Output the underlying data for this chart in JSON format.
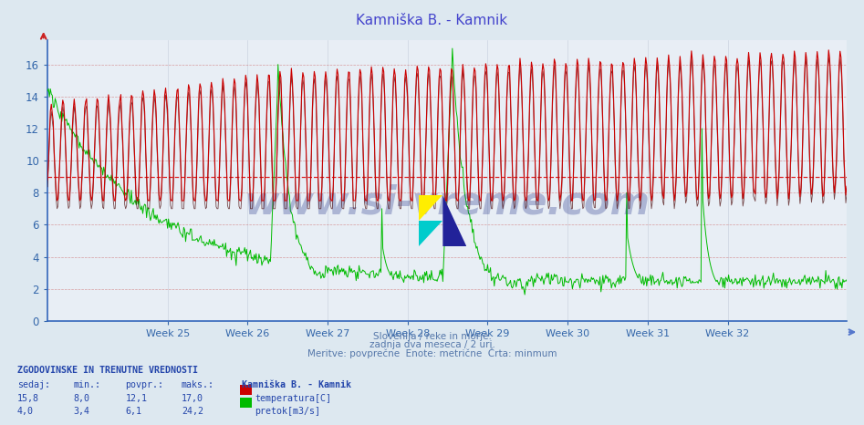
{
  "title": "Kamniška B. - Kamnik",
  "title_color": "#4444cc",
  "bg_color": "#dde8f0",
  "plot_bg_color": "#e8eef5",
  "grid_color": "#aab8cc",
  "grid_vcolor": "#c0c8d8",
  "x_label_color": "#3366aa",
  "y_label_color": "#3366aa",
  "week_labels": [
    "Week 25",
    "Week 26",
    "Week 27",
    "Week 28",
    "Week 29",
    "Week 30",
    "Week 31",
    "Week 32"
  ],
  "y_ticks": [
    0,
    2,
    4,
    6,
    8,
    10,
    12,
    14,
    16
  ],
  "y_min": 0,
  "y_max": 17.5,
  "n_points": 840,
  "temp_color": "#cc0000",
  "temp_min_color": "#440000",
  "flow_color": "#00bb00",
  "avg_line_color": "#dd0000",
  "avg_line_value": 9.0,
  "subtitle1": "Slovenija / reke in morje.",
  "subtitle2": "zadnja dva meseca / 2 uri.",
  "subtitle3": "Meritve: povprečne  Enote: metrične  Črta: minmum",
  "legend_title": "ZGODOVINSKE IN TRENUTNE VREDNOSTI",
  "col_sedaj": "sedaj:",
  "col_min": "min.:",
  "col_povpr": "povpr.:",
  "col_maks": "maks.:",
  "station_label": "Kamniška B. - Kamnik",
  "temp_sedaj": "15,8",
  "temp_min": "8,0",
  "temp_povpr": "12,1",
  "temp_maks": "17,0",
  "temp_label": "temperatura[C]",
  "flow_sedaj": "4,0",
  "flow_min": "3,4",
  "flow_povpr": "6,1",
  "flow_maks": "24,2",
  "flow_label": "pretok[m3/s]",
  "watermark": "www.si-vreme.com",
  "flow_display_max": 17.0,
  "flow_data_max": 24.2
}
